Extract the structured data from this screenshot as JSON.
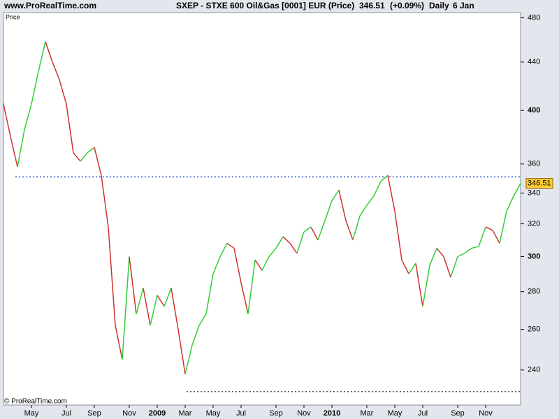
{
  "chart_data": {
    "type": "price-line",
    "site": "www.ProRealTime.com",
    "title": "SXEP - STXE 600 Oil&Gas [0001] EUR (Price)",
    "change": "(+0.09%)",
    "period": "Daily",
    "date": "6 Jan",
    "panel_label": "Price",
    "copyright": "© ProRealTime.com",
    "log_scale": true,
    "up_color": "#33cc33",
    "down_color": "#d03030",
    "ylim": [
      224,
      485
    ],
    "yticks": [
      240,
      260,
      280,
      300,
      320,
      340,
      360,
      400,
      440,
      480
    ],
    "hlines": [
      {
        "value": 351,
        "color": "#3050d0"
      },
      {
        "value": 230,
        "color": "#555555"
      }
    ],
    "categories": [
      null,
      null,
      null,
      null,
      "May",
      null,
      null,
      null,
      null,
      "Jul",
      null,
      null,
      null,
      "Sep",
      null,
      null,
      null,
      null,
      "Nov",
      null,
      null,
      null,
      "2009",
      null,
      null,
      null,
      "Mar",
      null,
      null,
      null,
      "May",
      null,
      null,
      null,
      "Jul",
      null,
      null,
      null,
      null,
      "Sep",
      null,
      null,
      null,
      "Nov",
      null,
      null,
      null,
      "2010",
      null,
      null,
      null,
      null,
      "Mar",
      null,
      null,
      null,
      "May",
      null,
      null,
      null,
      "Jul",
      null,
      null,
      null,
      null,
      "Sep",
      null,
      null,
      null,
      "Nov",
      null,
      null,
      null,
      null,
      null
    ],
    "values": [
      405,
      380,
      358,
      385,
      405,
      432,
      458,
      440,
      425,
      405,
      368,
      362,
      368,
      372,
      352,
      318,
      262,
      245,
      300,
      268,
      282,
      262,
      278,
      272,
      282,
      260,
      238,
      252,
      262,
      268,
      290,
      300,
      308,
      305,
      285,
      268,
      298,
      292,
      300,
      305,
      312,
      308,
      302,
      315,
      318,
      310,
      322,
      335,
      342,
      322,
      310,
      325,
      332,
      338,
      348,
      352,
      328,
      298,
      290,
      296,
      272,
      295,
      305,
      300,
      288,
      300,
      302,
      305,
      306,
      318,
      316,
      308,
      328,
      338,
      346.51
    ]
  }
}
